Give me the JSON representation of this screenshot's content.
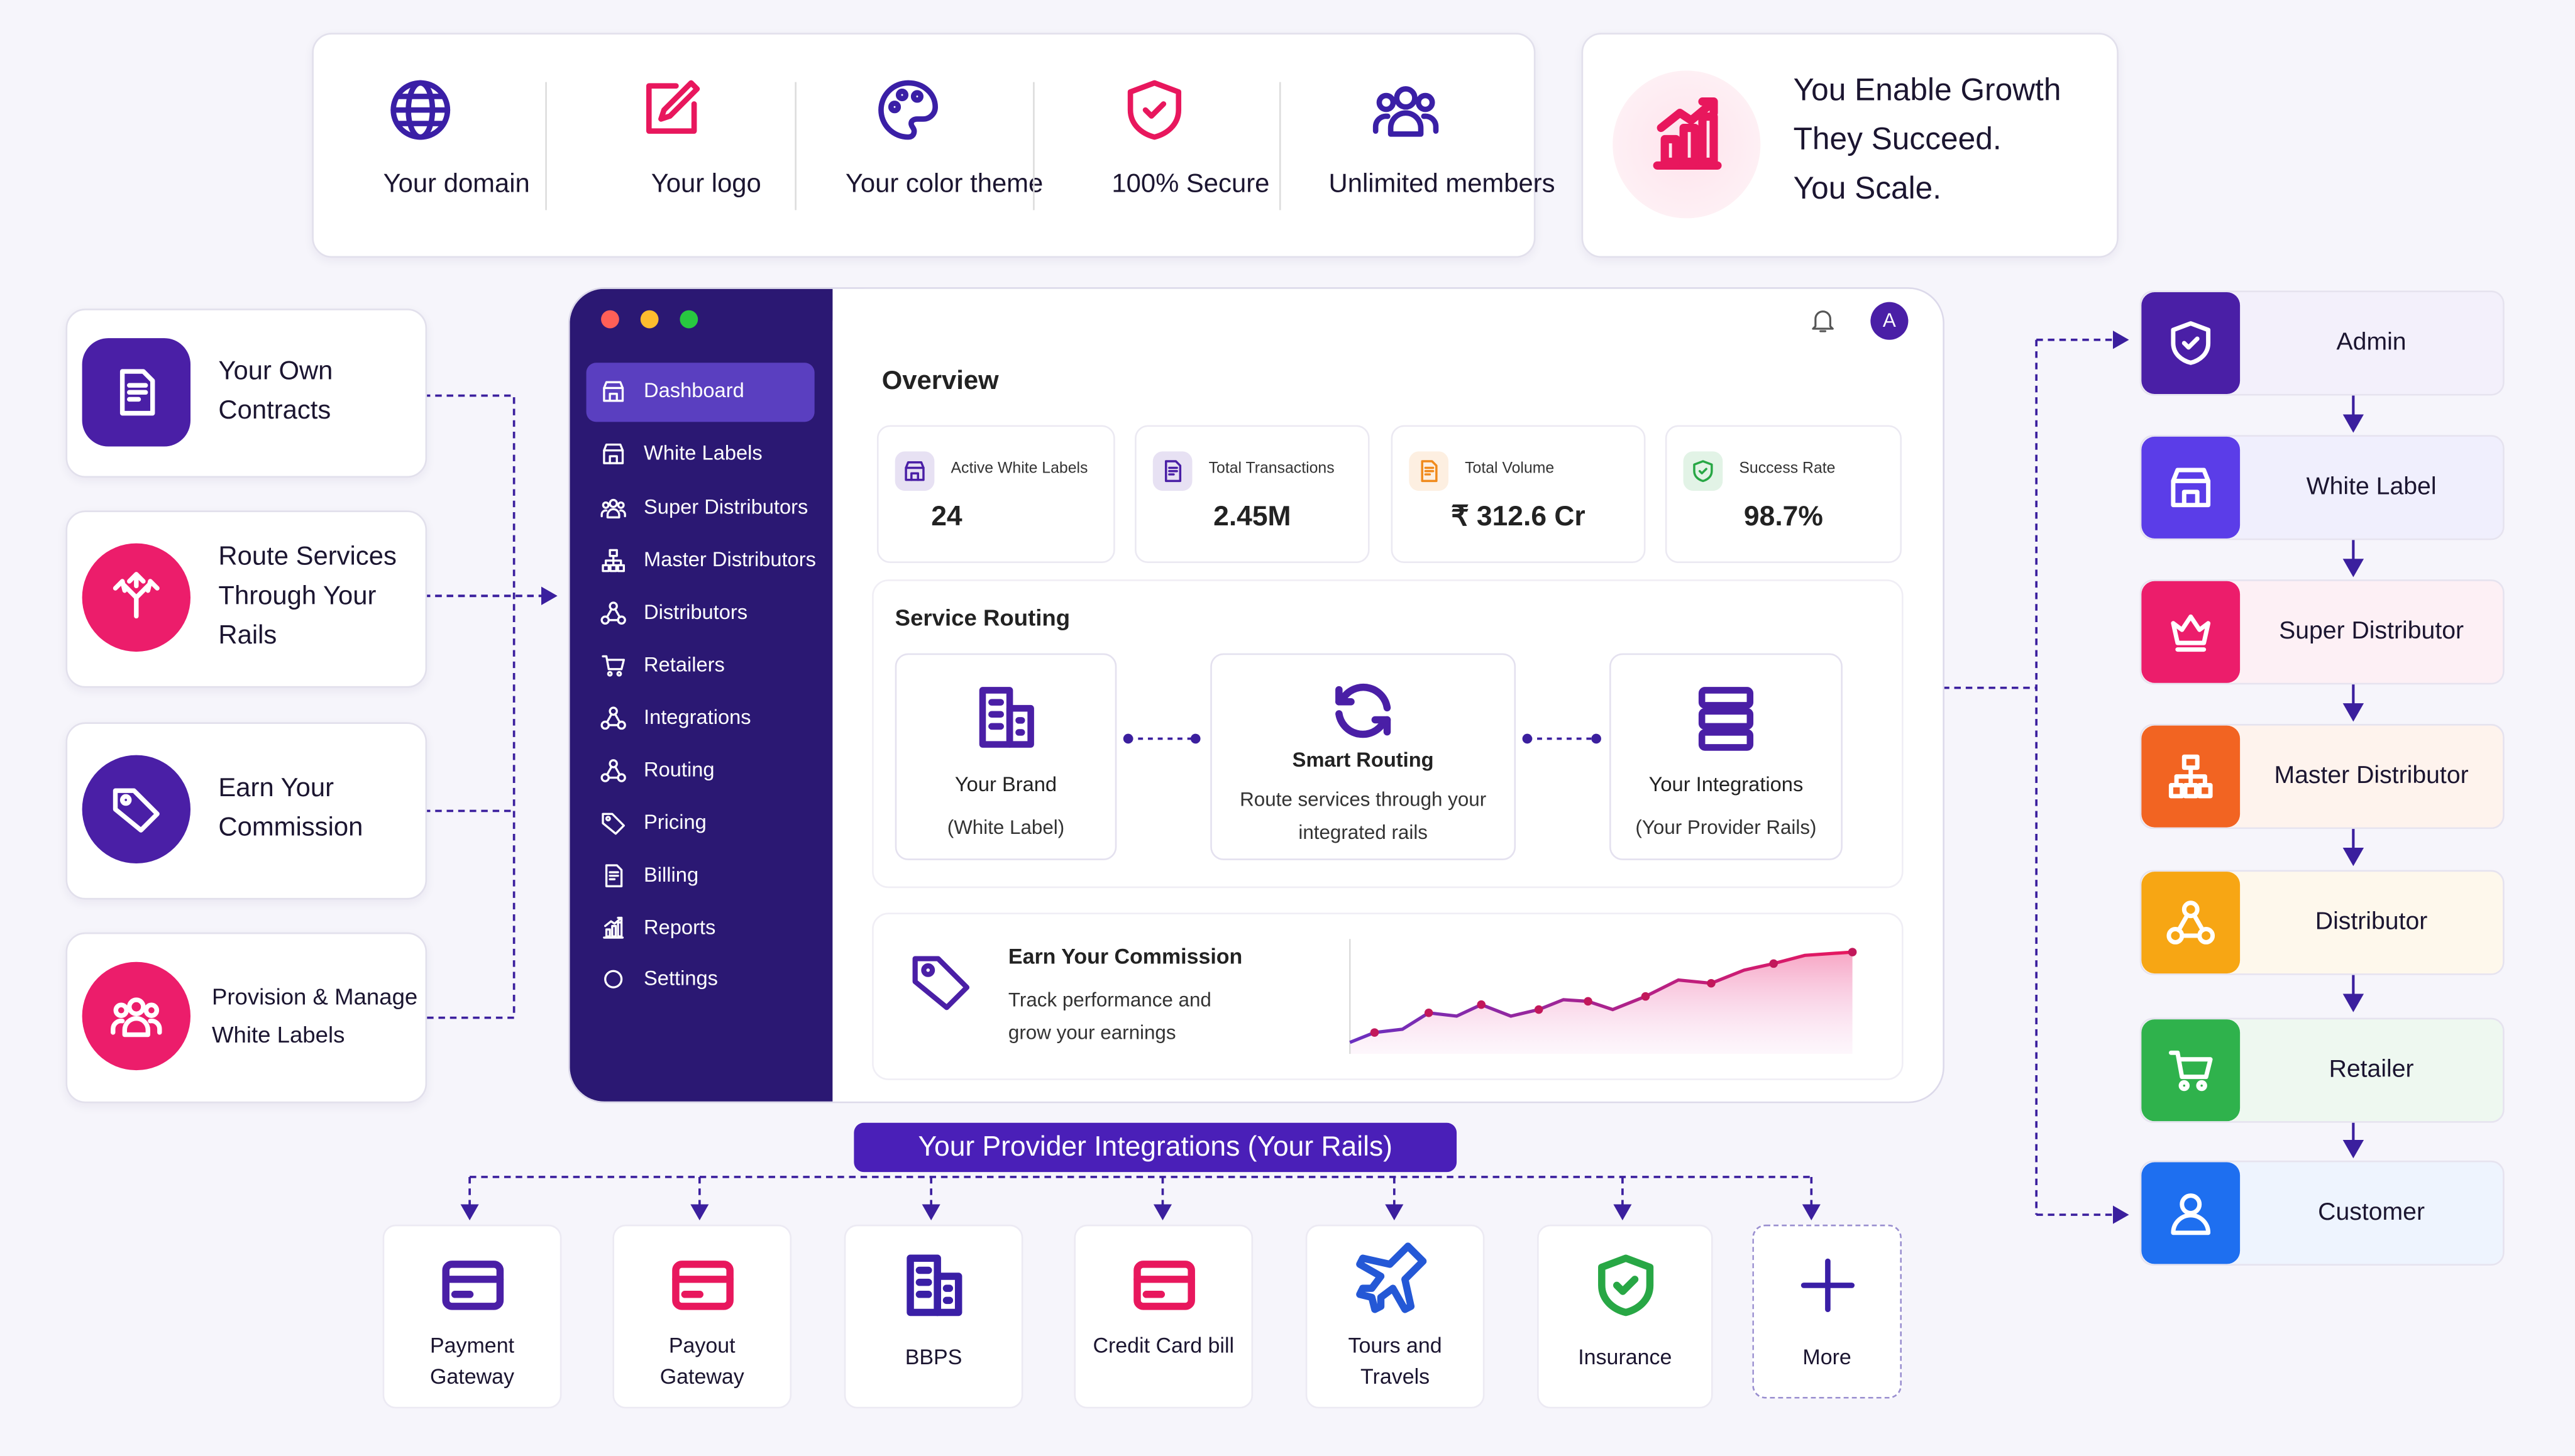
{
  "features": [
    "Your domain",
    "Your logo",
    "Your color theme",
    "100% Secure",
    "Unlimited members"
  ],
  "growth": [
    "You Enable Growth",
    "They Succeed.",
    "You Scale."
  ],
  "left_cards": [
    "Your Own Contracts",
    "Route Services Through Your Rails",
    "Earn Your Commission",
    "Provision & Manage White Labels"
  ],
  "dashboard": {
    "avatar": "A",
    "sidebar": [
      "Dashboard",
      "White Labels",
      "Super Distributors",
      "Master Distributors",
      "Distributors",
      "Retailers",
      "Integrations",
      "Routing",
      "Pricing",
      "Billing",
      "Reports",
      "Settings"
    ],
    "overview": "Overview",
    "stats": [
      {
        "label": "Active White Labels",
        "value": "24"
      },
      {
        "label": "Total Transactions",
        "value": "2.45M"
      },
      {
        "label": "Total Volume",
        "value": "₹ 312.6 Cr"
      },
      {
        "label": "Success Rate",
        "value": "98.7%"
      }
    ],
    "service_routing": "Service Routing",
    "routing_nodes": [
      {
        "title": "Your Brand",
        "subtitle": "(White Label)"
      },
      {
        "title": "Smart Routing",
        "subtitle": "Route services through your integrated rails"
      },
      {
        "title": "Your Integrations",
        "subtitle": "(Your Provider Rails)"
      }
    ],
    "commission": {
      "title": "Earn Your Commission",
      "text": "Track performance and grow your earnings"
    }
  },
  "integrations": {
    "title": "Your Provider Integrations (Your Rails)",
    "items": [
      "Payment Gateway",
      "Payout Gateway",
      "BBPS",
      "Credit Card bill",
      "Tours and Travels",
      "Insurance",
      "More"
    ]
  },
  "hierarchy": [
    "Admin",
    "White Label",
    "Super Distributor",
    "Master Distributor",
    "Distributor",
    "Retailer",
    "Customer"
  ]
}
